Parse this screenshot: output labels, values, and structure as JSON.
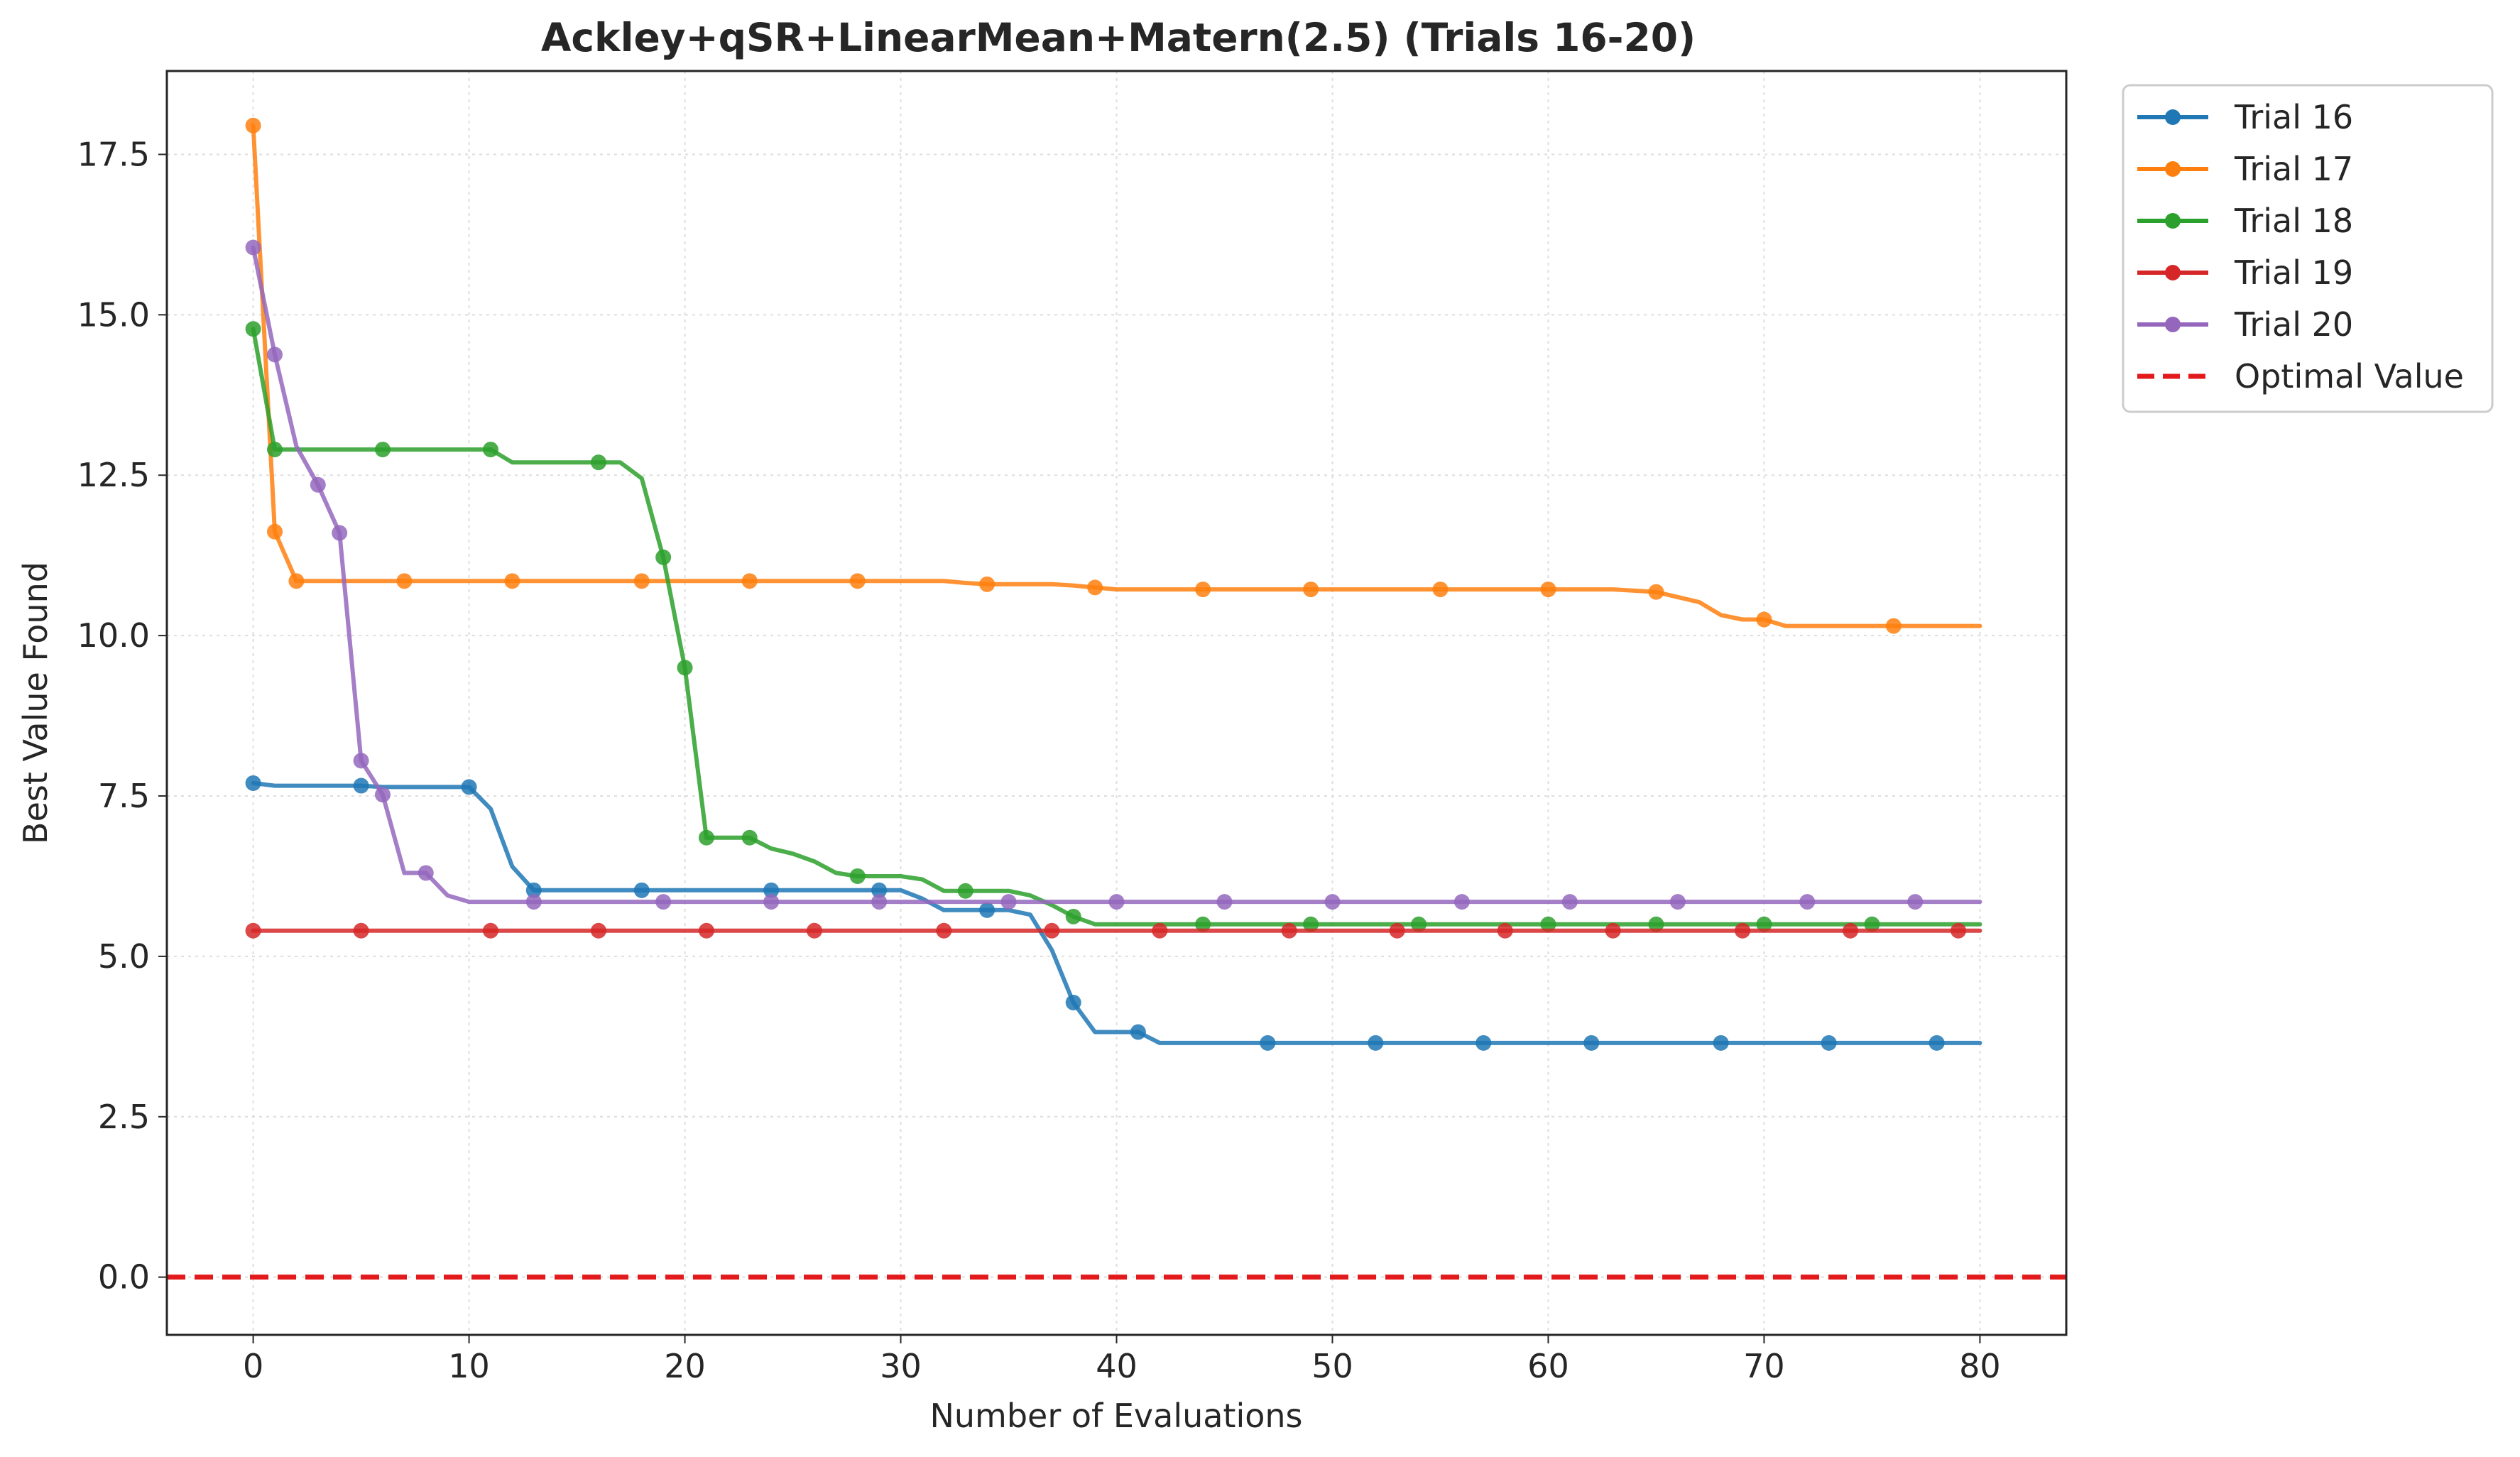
{
  "chart_data": {
    "type": "line",
    "title": "Ackley+qSR+LinearMean+Matern(2.5) (Trials 16-20)",
    "xlabel": "Number of Evaluations",
    "ylabel": "Best Value Found",
    "xlim": [
      -4,
      84
    ],
    "ylim": [
      -0.9,
      18.8
    ],
    "xticks": [
      0,
      10,
      20,
      30,
      40,
      50,
      60,
      70,
      80
    ],
    "yticks": [
      0.0,
      2.5,
      5.0,
      7.5,
      10.0,
      12.5,
      15.0,
      17.5
    ],
    "ytick_labels": [
      "0.0",
      "2.5",
      "5.0",
      "7.5",
      "10.0",
      "12.5",
      "15.0",
      "17.5"
    ],
    "grid": true,
    "legend_position": "outside-top-right",
    "series": [
      {
        "name": "Trial 16",
        "color": "#1f77b4",
        "x": [
          0,
          1,
          2,
          3,
          4,
          5,
          6,
          7,
          8,
          9,
          10,
          11,
          12,
          13,
          14,
          15,
          16,
          17,
          18,
          19,
          20,
          21,
          22,
          23,
          24,
          25,
          26,
          27,
          28,
          29,
          30,
          31,
          32,
          33,
          34,
          35,
          36,
          37,
          38,
          39,
          40,
          41,
          42,
          43,
          44,
          45,
          46,
          47,
          48,
          49,
          50,
          51,
          52,
          53,
          54,
          55,
          56,
          57,
          58,
          59,
          60,
          61,
          62,
          63,
          64,
          65,
          66,
          67,
          68,
          69,
          70,
          71,
          72,
          73,
          74,
          75,
          76,
          77,
          78,
          79,
          80
        ],
        "y": [
          7.7,
          7.66,
          7.66,
          7.66,
          7.66,
          7.66,
          7.64,
          7.64,
          7.64,
          7.64,
          7.64,
          7.3,
          6.4,
          6.03,
          6.03,
          6.03,
          6.03,
          6.03,
          6.03,
          6.03,
          6.03,
          6.03,
          6.03,
          6.03,
          6.03,
          6.03,
          6.03,
          6.03,
          6.03,
          6.03,
          6.03,
          5.9,
          5.72,
          5.72,
          5.72,
          5.72,
          5.65,
          5.1,
          4.28,
          3.82,
          3.82,
          3.82,
          3.65,
          3.65,
          3.65,
          3.65,
          3.65,
          3.65,
          3.65,
          3.65,
          3.65,
          3.65,
          3.65,
          3.65,
          3.65,
          3.65,
          3.65,
          3.65,
          3.65,
          3.65,
          3.65,
          3.65,
          3.65,
          3.65,
          3.65,
          3.65,
          3.65,
          3.65,
          3.65,
          3.65,
          3.65,
          3.65,
          3.65,
          3.65,
          3.65,
          3.65,
          3.65,
          3.65,
          3.65,
          3.65,
          3.65
        ],
        "markers_x": [
          0,
          5,
          10,
          13,
          18,
          24,
          29,
          34,
          38,
          41,
          47,
          52,
          57,
          62,
          68,
          73,
          78
        ]
      },
      {
        "name": "Trial 17",
        "color": "#ff7f0e",
        "x": [
          0,
          1,
          2,
          3,
          4,
          5,
          6,
          7,
          8,
          9,
          10,
          11,
          12,
          13,
          14,
          15,
          16,
          17,
          18,
          19,
          20,
          21,
          22,
          23,
          24,
          25,
          26,
          27,
          28,
          29,
          30,
          31,
          32,
          33,
          34,
          35,
          36,
          37,
          38,
          39,
          40,
          41,
          42,
          43,
          44,
          45,
          46,
          47,
          48,
          49,
          50,
          51,
          52,
          53,
          54,
          55,
          56,
          57,
          58,
          59,
          60,
          61,
          62,
          63,
          64,
          65,
          66,
          67,
          68,
          69,
          70,
          71,
          72,
          73,
          74,
          75,
          76,
          77,
          78,
          79,
          80
        ],
        "y": [
          17.95,
          11.62,
          10.85,
          10.85,
          10.85,
          10.85,
          10.85,
          10.85,
          10.85,
          10.85,
          10.85,
          10.85,
          10.85,
          10.85,
          10.85,
          10.85,
          10.85,
          10.85,
          10.85,
          10.85,
          10.85,
          10.85,
          10.85,
          10.85,
          10.85,
          10.85,
          10.85,
          10.85,
          10.85,
          10.85,
          10.85,
          10.85,
          10.85,
          10.82,
          10.8,
          10.8,
          10.8,
          10.8,
          10.78,
          10.75,
          10.72,
          10.72,
          10.72,
          10.72,
          10.72,
          10.72,
          10.72,
          10.72,
          10.72,
          10.72,
          10.72,
          10.72,
          10.72,
          10.72,
          10.72,
          10.72,
          10.72,
          10.72,
          10.72,
          10.72,
          10.72,
          10.72,
          10.72,
          10.72,
          10.7,
          10.68,
          10.6,
          10.52,
          10.32,
          10.25,
          10.25,
          10.15,
          10.15,
          10.15,
          10.15,
          10.15,
          10.15,
          10.15,
          10.15,
          10.15,
          10.15
        ],
        "markers_x": [
          0,
          1,
          2,
          7,
          12,
          18,
          23,
          28,
          34,
          39,
          44,
          49,
          55,
          60,
          65,
          70,
          76
        ]
      },
      {
        "name": "Trial 18",
        "color": "#2ca02c",
        "x": [
          0,
          1,
          2,
          3,
          4,
          5,
          6,
          7,
          8,
          9,
          10,
          11,
          12,
          13,
          14,
          15,
          16,
          17,
          18,
          19,
          20,
          21,
          22,
          23,
          24,
          25,
          26,
          27,
          28,
          29,
          30,
          31,
          32,
          33,
          34,
          35,
          36,
          37,
          38,
          39,
          40,
          41,
          42,
          43,
          44,
          45,
          46,
          47,
          48,
          49,
          50,
          51,
          52,
          53,
          54,
          55,
          56,
          57,
          58,
          59,
          60,
          61,
          62,
          63,
          64,
          65,
          66,
          67,
          68,
          69,
          70,
          71,
          72,
          73,
          74,
          75,
          76,
          77,
          78,
          79,
          80
        ],
        "y": [
          14.78,
          12.9,
          12.9,
          12.9,
          12.9,
          12.9,
          12.9,
          12.9,
          12.9,
          12.9,
          12.9,
          12.9,
          12.7,
          12.7,
          12.7,
          12.7,
          12.7,
          12.7,
          12.45,
          11.22,
          9.5,
          6.85,
          6.85,
          6.85,
          6.68,
          6.6,
          6.48,
          6.3,
          6.25,
          6.25,
          6.25,
          6.2,
          6.02,
          6.02,
          6.02,
          6.02,
          5.95,
          5.8,
          5.62,
          5.5,
          5.5,
          5.5,
          5.5,
          5.5,
          5.5,
          5.5,
          5.5,
          5.5,
          5.5,
          5.5,
          5.5,
          5.5,
          5.5,
          5.5,
          5.5,
          5.5,
          5.5,
          5.5,
          5.5,
          5.5,
          5.5,
          5.5,
          5.5,
          5.5,
          5.5,
          5.5,
          5.5,
          5.5,
          5.5,
          5.5,
          5.5,
          5.5,
          5.5,
          5.5,
          5.5,
          5.5,
          5.5,
          5.5,
          5.5,
          5.5,
          5.5
        ],
        "markers_x": [
          0,
          1,
          6,
          11,
          16,
          19,
          20,
          21,
          23,
          28,
          33,
          38,
          44,
          49,
          54,
          60,
          65,
          70,
          75
        ]
      },
      {
        "name": "Trial 19",
        "color": "#d62728",
        "x": [
          0,
          80
        ],
        "y": [
          5.4,
          5.4
        ],
        "markers_x": [
          0,
          5,
          11,
          16,
          21,
          26,
          32,
          37,
          42,
          48,
          53,
          58,
          63,
          69,
          74,
          79
        ]
      },
      {
        "name": "Trial 20",
        "color": "#9467bd",
        "x": [
          0,
          1,
          2,
          3,
          4,
          5,
          6,
          7,
          8,
          9,
          10,
          11,
          12,
          13,
          14,
          15,
          16,
          17,
          18,
          19,
          20,
          21,
          22,
          23,
          24,
          25,
          26,
          27,
          28,
          29,
          30,
          31,
          32,
          33,
          34,
          35,
          36,
          37,
          38,
          39,
          40,
          41,
          42,
          43,
          44,
          45,
          46,
          47,
          48,
          49,
          50,
          51,
          52,
          53,
          54,
          55,
          56,
          57,
          58,
          59,
          60,
          61,
          62,
          63,
          64,
          65,
          66,
          67,
          68,
          69,
          70,
          71,
          72,
          73,
          74,
          75,
          76,
          77,
          78,
          79,
          80
        ],
        "y": [
          16.05,
          14.38,
          12.95,
          12.35,
          11.6,
          8.05,
          7.52,
          6.3,
          6.3,
          5.95,
          5.85,
          5.85,
          5.85,
          5.85,
          5.85,
          5.85,
          5.85,
          5.85,
          5.85,
          5.85,
          5.85,
          5.85,
          5.85,
          5.85,
          5.85,
          5.85,
          5.85,
          5.85,
          5.85,
          5.85,
          5.85,
          5.85,
          5.85,
          5.85,
          5.85,
          5.85,
          5.85,
          5.85,
          5.85,
          5.85,
          5.85,
          5.85,
          5.85,
          5.85,
          5.85,
          5.85,
          5.85,
          5.85,
          5.85,
          5.85,
          5.85,
          5.85,
          5.85,
          5.85,
          5.85,
          5.85,
          5.85,
          5.85,
          5.85,
          5.85,
          5.85,
          5.85,
          5.85,
          5.85,
          5.85,
          5.85,
          5.85,
          5.85,
          5.85,
          5.85,
          5.85,
          5.85,
          5.85,
          5.85,
          5.85,
          5.85,
          5.85,
          5.85,
          5.85,
          5.85,
          5.85
        ],
        "markers_x": [
          0,
          1,
          3,
          4,
          5,
          6,
          8,
          13,
          19,
          24,
          29,
          35,
          40,
          45,
          50,
          56,
          61,
          66,
          72,
          77
        ]
      }
    ],
    "reference_lines": [
      {
        "name": "Optimal Value",
        "y": 0.0,
        "color": "#e31a1c",
        "style": "dashed"
      }
    ]
  }
}
